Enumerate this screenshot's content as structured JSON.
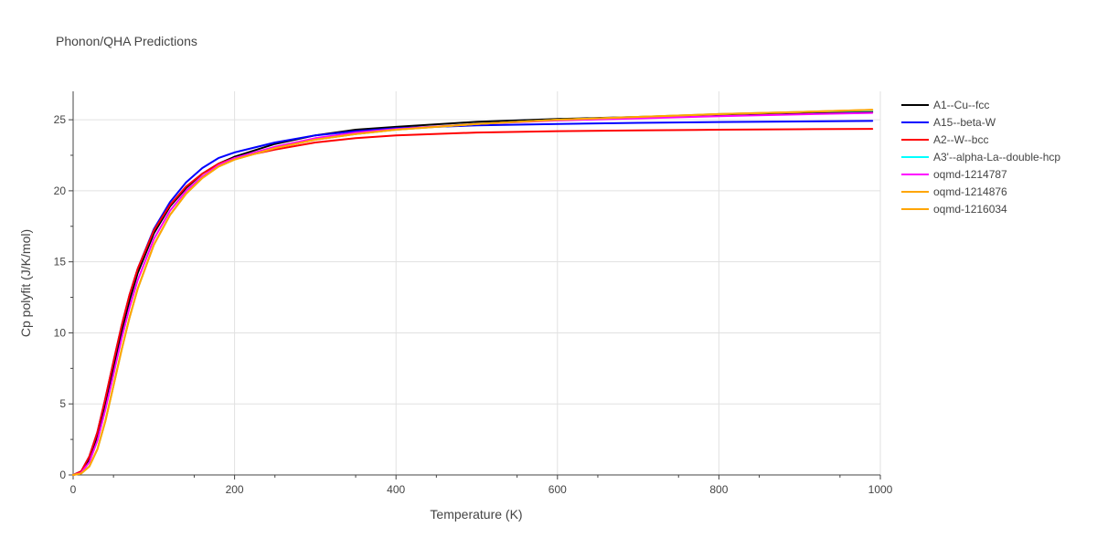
{
  "chart_data": {
    "type": "line",
    "title": "Phonon/QHA Predictions",
    "xlabel": "Temperature (K)",
    "ylabel": "Cp polyfit (J/K/mol)",
    "xlim": [
      0,
      1000
    ],
    "ylim": [
      0,
      27
    ],
    "xticks": [
      0,
      200,
      400,
      600,
      800,
      1000
    ],
    "yticks": [
      0,
      5,
      10,
      15,
      20,
      25
    ],
    "grid": true,
    "legend_position": "right",
    "series": [
      {
        "name": "A1--Cu--fcc",
        "color": "#000000",
        "x": [
          0,
          10,
          20,
          30,
          40,
          50,
          60,
          70,
          80,
          100,
          120,
          140,
          160,
          180,
          200,
          250,
          300,
          350,
          400,
          500,
          600,
          700,
          800,
          900,
          990
        ],
        "y": [
          0,
          0.2,
          1.1,
          2.7,
          5.0,
          7.6,
          10.1,
          12.3,
          14.2,
          17.0,
          18.9,
          20.2,
          21.2,
          21.9,
          22.4,
          23.3,
          23.9,
          24.3,
          24.5,
          24.85,
          25.05,
          25.2,
          25.35,
          25.45,
          25.55
        ]
      },
      {
        "name": "A15--beta-W",
        "color": "#0000ff",
        "x": [
          0,
          10,
          20,
          30,
          40,
          50,
          60,
          70,
          80,
          100,
          120,
          140,
          160,
          180,
          200,
          250,
          300,
          350,
          400,
          500,
          600,
          700,
          800,
          900,
          990
        ],
        "y": [
          0,
          0.25,
          1.3,
          3.0,
          5.4,
          8.0,
          10.5,
          12.7,
          14.5,
          17.3,
          19.2,
          20.6,
          21.6,
          22.3,
          22.7,
          23.4,
          23.9,
          24.2,
          24.4,
          24.6,
          24.7,
          24.78,
          24.84,
          24.88,
          24.92
        ]
      },
      {
        "name": "A2--W--bcc",
        "color": "#ff0000",
        "x": [
          0,
          10,
          20,
          30,
          40,
          50,
          60,
          70,
          80,
          100,
          120,
          140,
          160,
          180,
          200,
          250,
          300,
          350,
          400,
          500,
          600,
          700,
          800,
          900,
          990
        ],
        "y": [
          0,
          0.25,
          1.3,
          3.0,
          5.4,
          8.0,
          10.5,
          12.7,
          14.5,
          17.2,
          19.0,
          20.3,
          21.2,
          21.9,
          22.3,
          22.9,
          23.4,
          23.7,
          23.9,
          24.1,
          24.2,
          24.25,
          24.3,
          24.33,
          24.36
        ]
      },
      {
        "name": "A3'--alpha-La--double-hcp",
        "color": "#00ffff",
        "x": [
          0,
          10,
          20,
          30,
          40,
          50,
          60,
          70,
          80,
          100,
          120,
          140,
          160,
          180,
          200,
          250,
          300,
          350,
          400,
          500,
          600,
          700,
          800,
          900,
          990
        ],
        "y": [
          0,
          0.1,
          0.6,
          1.8,
          3.8,
          6.3,
          8.8,
          11.1,
          13.1,
          16.2,
          18.3,
          19.8,
          20.9,
          21.7,
          22.2,
          23.0,
          23.6,
          24.0,
          24.3,
          24.7,
          25.0,
          25.2,
          25.4,
          25.55,
          25.65
        ]
      },
      {
        "name": "oqmd-1214787",
        "color": "#ff00ff",
        "x": [
          0,
          10,
          20,
          30,
          40,
          50,
          60,
          70,
          80,
          100,
          120,
          140,
          160,
          180,
          200,
          250,
          300,
          350,
          400,
          500,
          600,
          700,
          800,
          900,
          990
        ],
        "y": [
          0,
          0.15,
          0.9,
          2.4,
          4.6,
          7.1,
          9.6,
          11.8,
          13.7,
          16.6,
          18.6,
          20.0,
          21.0,
          21.8,
          22.3,
          23.1,
          23.7,
          24.1,
          24.35,
          24.7,
          24.95,
          25.1,
          25.25,
          25.38,
          25.48
        ]
      },
      {
        "name": "oqmd-1214876",
        "color": "#ffa500",
        "x": [
          0,
          10,
          20,
          30,
          40,
          50,
          60,
          70,
          80,
          100,
          120,
          140,
          160,
          180,
          200,
          250,
          300,
          350,
          400,
          500,
          600,
          700,
          800,
          900,
          990
        ],
        "y": [
          0,
          0.1,
          0.6,
          1.8,
          3.8,
          6.3,
          8.8,
          11.1,
          13.1,
          16.2,
          18.3,
          19.8,
          20.9,
          21.7,
          22.2,
          23.0,
          23.6,
          24.0,
          24.3,
          24.7,
          25.0,
          25.2,
          25.4,
          25.55,
          25.7
        ]
      },
      {
        "name": "oqmd-1216034",
        "color": "#ffa500",
        "x": [
          0,
          10,
          20,
          30,
          40,
          50,
          60,
          70,
          80,
          100,
          120,
          140,
          160,
          180,
          200,
          250,
          300,
          350,
          400,
          500,
          600,
          700,
          800,
          900,
          990
        ],
        "y": [
          0,
          0.1,
          0.6,
          1.8,
          3.8,
          6.3,
          8.8,
          11.1,
          13.1,
          16.2,
          18.3,
          19.8,
          20.9,
          21.7,
          22.2,
          23.0,
          23.6,
          24.0,
          24.3,
          24.7,
          25.0,
          25.2,
          25.4,
          25.55,
          25.7
        ]
      }
    ]
  }
}
